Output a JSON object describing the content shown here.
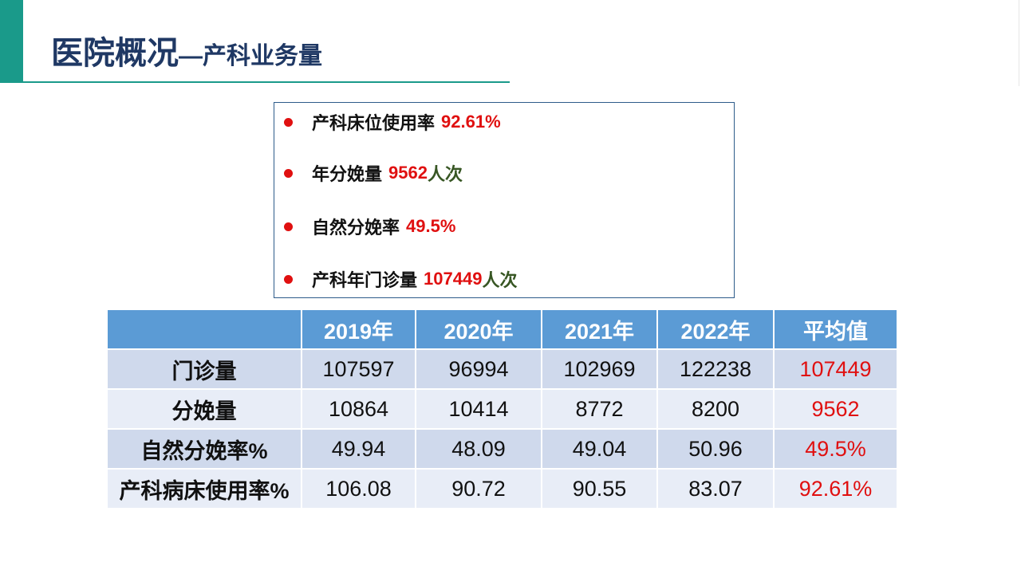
{
  "header": {
    "title_main": "医院概况",
    "title_sub": "—产科业务量"
  },
  "summary": {
    "items": [
      {
        "label": "产科床位使用率",
        "value": "92.61%",
        "unit": ""
      },
      {
        "label": "年分娩量",
        "value": "9562",
        "unit": "人次"
      },
      {
        "label": "自然分娩率",
        "value": "49.5%",
        "unit": ""
      },
      {
        "label": "产科年门诊量",
        "value": "107449",
        "unit": "人次"
      }
    ]
  },
  "table": {
    "corner": "",
    "columns": [
      "2019年",
      "2020年",
      "2021年",
      "2022年",
      "平均值"
    ],
    "rows": [
      {
        "label": "门诊量",
        "values": [
          "107597",
          "96994",
          "102969",
          "122238",
          "107449"
        ]
      },
      {
        "label": "分娩量",
        "values": [
          "10864",
          "10414",
          "8772",
          "8200",
          "9562"
        ]
      },
      {
        "label": "自然分娩率%",
        "values": [
          "49.94",
          "48.09",
          "49.04",
          "50.96",
          "49.5%"
        ]
      },
      {
        "label": "产科病床使用率%",
        "values": [
          "106.08",
          "90.72",
          "90.55",
          "83.07",
          "92.61%"
        ]
      }
    ]
  },
  "colors": {
    "accent": "#1a9a8a",
    "title": "#1f3864",
    "highlight_red": "#e01010",
    "unit_green": "#375623",
    "table_header": "#5b9bd5",
    "row_dark": "#cfd9ec",
    "row_light": "#e8edf7"
  }
}
